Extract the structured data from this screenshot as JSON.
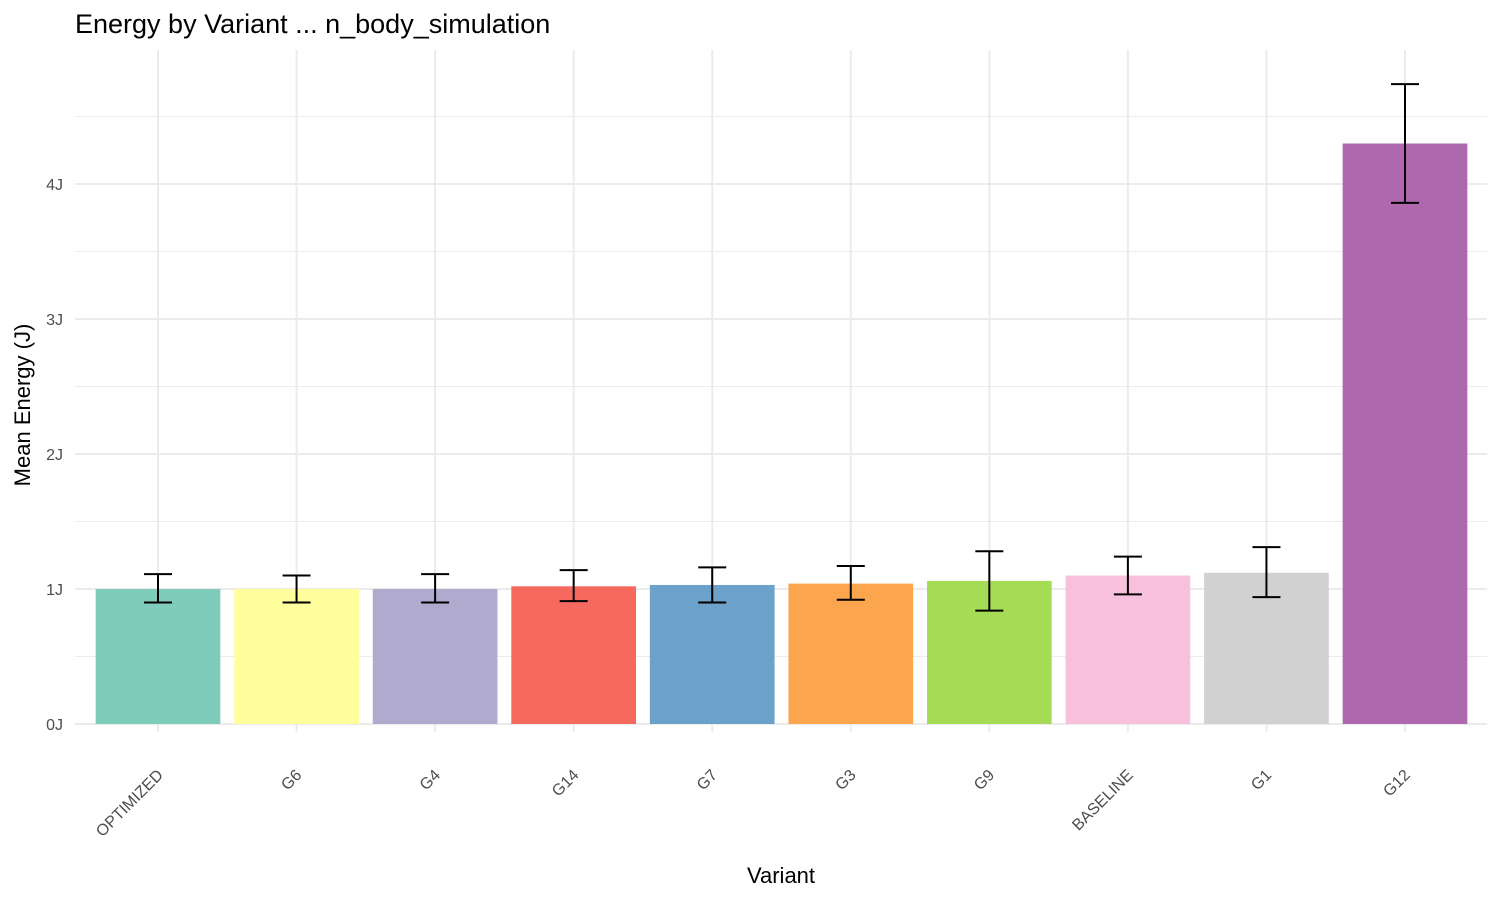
{
  "chart_data": {
    "type": "bar",
    "title": "Energy by Variant ... n_body_simulation",
    "xlabel": "Variant",
    "ylabel": "Mean Energy (J)",
    "ylim": [
      -0.1,
      4.95
    ],
    "y_ticks": [
      {
        "value": 0,
        "label": "0J"
      },
      {
        "value": 1,
        "label": "1J"
      },
      {
        "value": 2,
        "label": "2J"
      },
      {
        "value": 3,
        "label": "3J"
      },
      {
        "value": 4,
        "label": "4J"
      }
    ],
    "y_minor_ticks": [
      0.5,
      1.5,
      2.5,
      3.5,
      4.5
    ],
    "grid": true,
    "legend": "none",
    "categories": [
      "OPTIMIZED",
      "G6",
      "G4",
      "G14",
      "G7",
      "G3",
      "G9",
      "BASELINE",
      "G1",
      "G12"
    ],
    "values": [
      1.0,
      1.0,
      1.0,
      1.02,
      1.03,
      1.04,
      1.06,
      1.1,
      1.12,
      4.3
    ],
    "error_low": [
      0.9,
      0.9,
      0.9,
      0.91,
      0.9,
      0.92,
      0.84,
      0.96,
      0.94,
      3.86
    ],
    "error_high": [
      1.11,
      1.1,
      1.11,
      1.14,
      1.16,
      1.17,
      1.28,
      1.24,
      1.31,
      4.74
    ],
    "colors": [
      "#7fccbb",
      "#ffff9e",
      "#b0aacf",
      "#f6695f",
      "#6ca1c9",
      "#fba64e",
      "#a6db56",
      "#f8c0dd",
      "#d1d1d1",
      "#ae68ae"
    ]
  }
}
